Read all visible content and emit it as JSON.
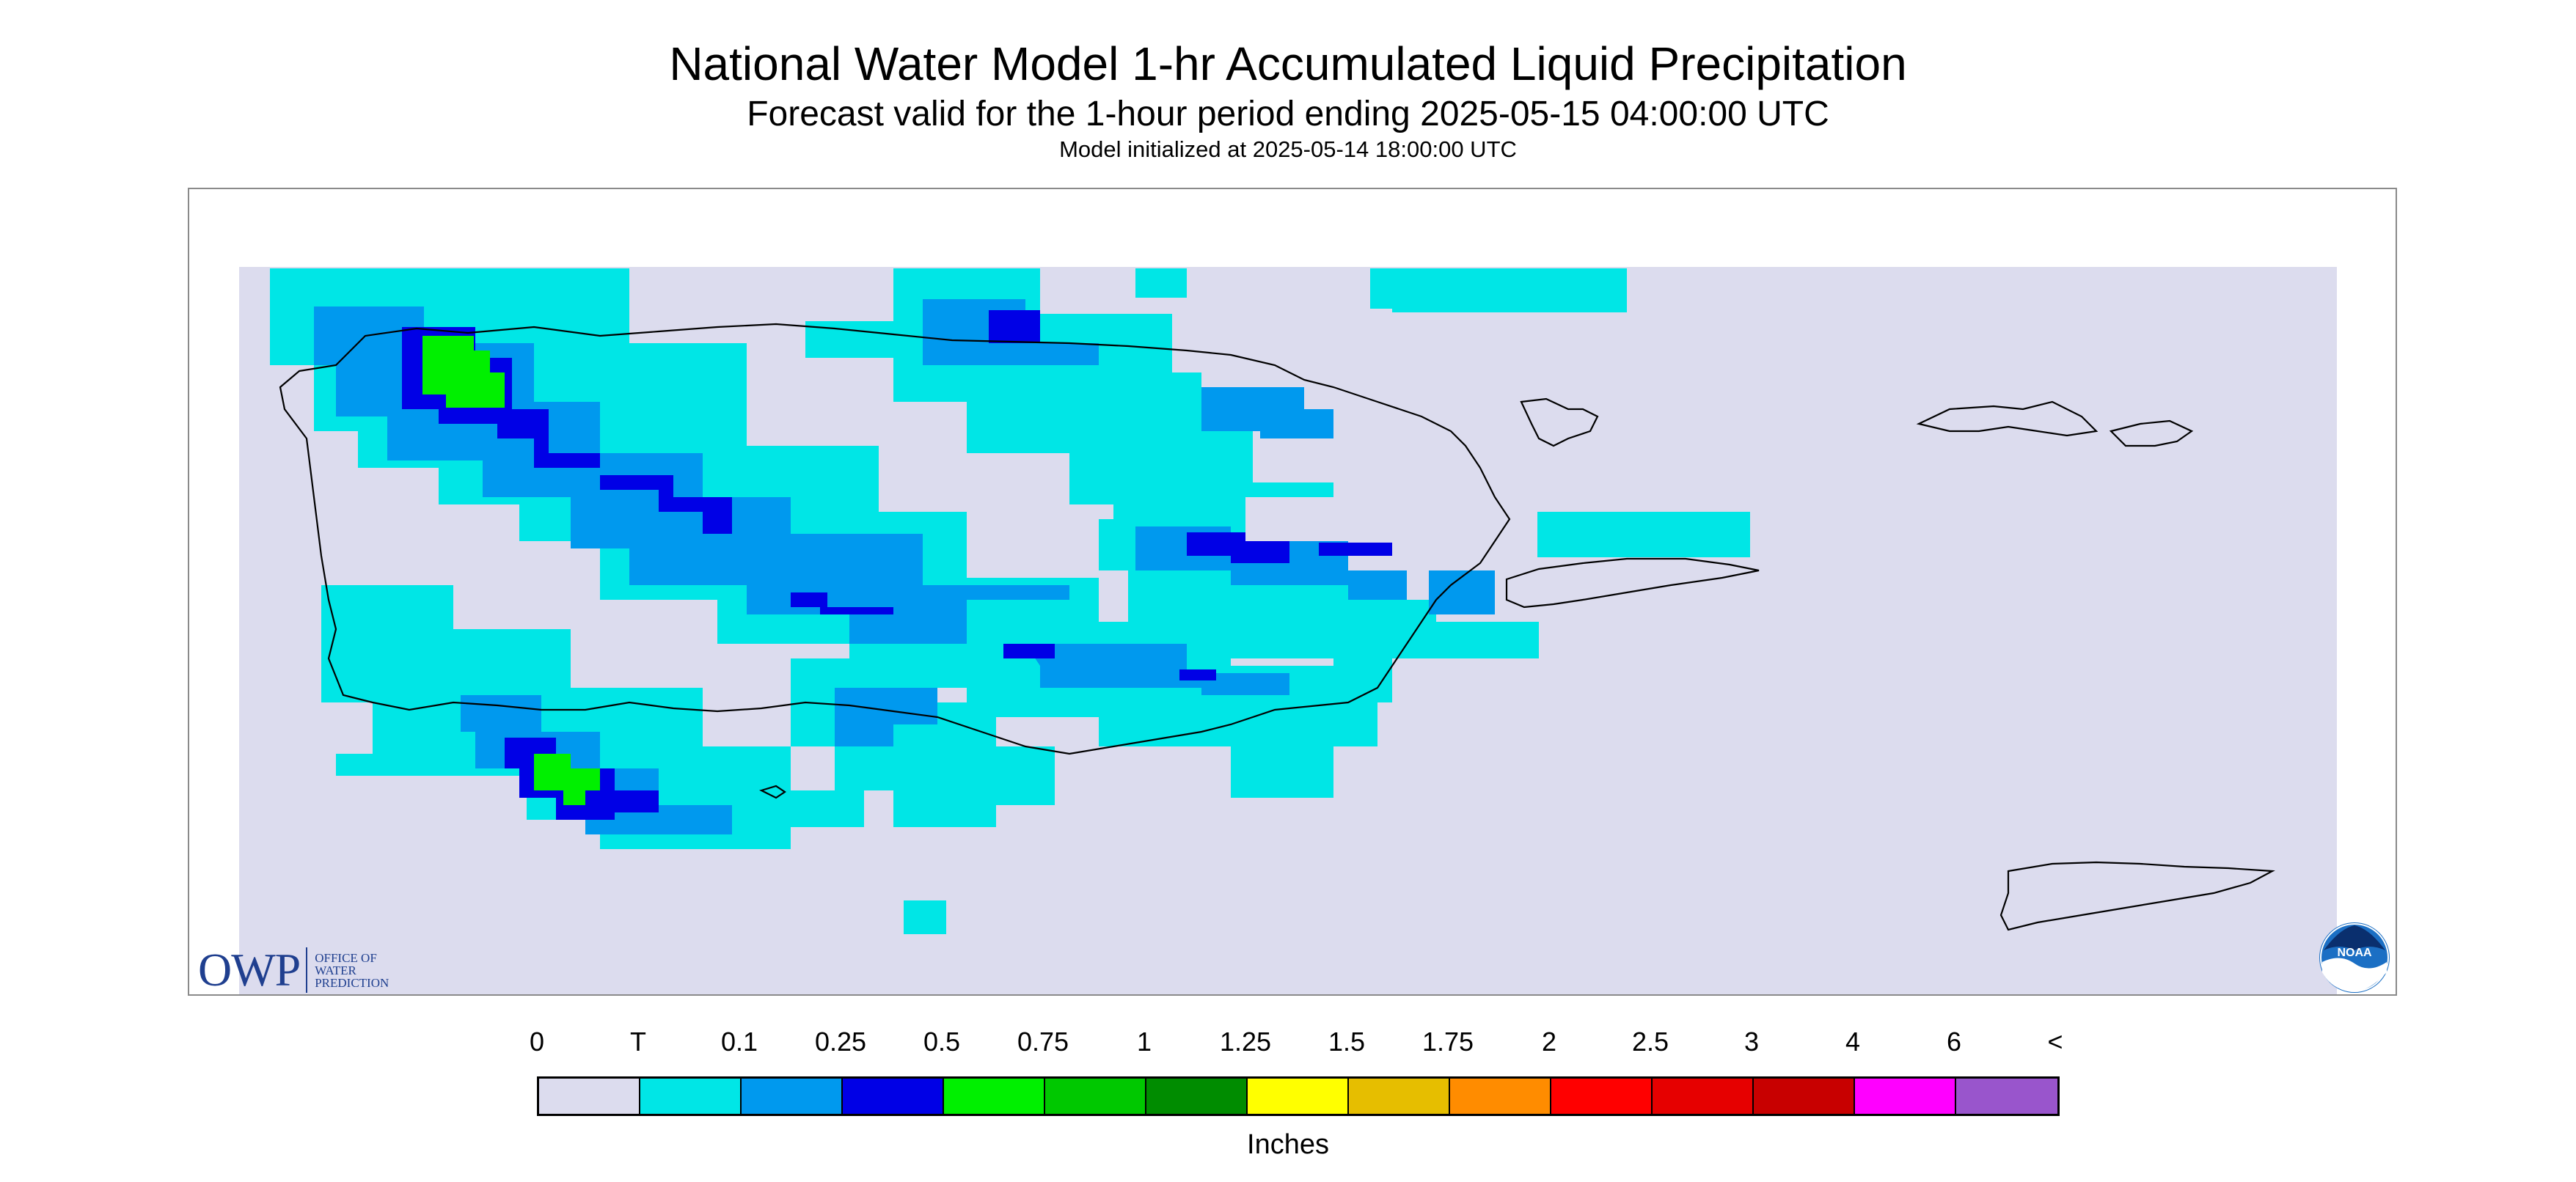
{
  "title": "National Water Model 1-hr Accumulated Liquid Precipitation",
  "subtitle": "Forecast valid for the 1-hour period ending 2025-05-15 04:00:00 UTC",
  "init_text": "Model initialized at 2025-05-14 18:00:00 UTC",
  "logos": {
    "owp_mark": "OWP",
    "owp_words": [
      "OFFICE OF",
      "WATER",
      "PREDICTION"
    ],
    "noaa": "NOAA"
  },
  "colors": {
    "background_map": "#dcdcee",
    "coast": "#000000",
    "owp_blue": "#1f3f8f"
  },
  "legend": {
    "labels": [
      "0",
      "T",
      "0.1",
      "0.25",
      "0.5",
      "0.75",
      "1",
      "1.25",
      "1.5",
      "1.75",
      "2",
      "2.5",
      "3",
      "4",
      "6",
      "<"
    ],
    "colors": [
      "#dcdcee",
      "#00e6e6",
      "#0099ee",
      "#0000e6",
      "#00f000",
      "#00c800",
      "#008c00",
      "#ffff00",
      "#e6be00",
      "#ff8c00",
      "#ff0000",
      "#e60000",
      "#c80000",
      "#ff00ff",
      "#9955cc"
    ],
    "units": "Inches"
  }
}
